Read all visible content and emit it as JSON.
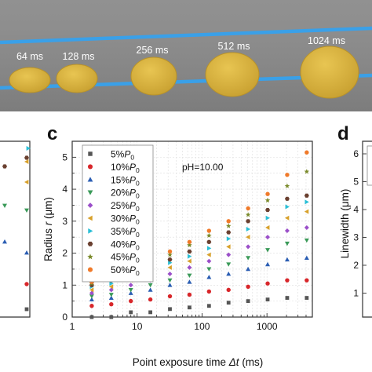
{
  "panel_labels": {
    "c": "c",
    "d": "d"
  },
  "micrograph": {
    "labels": [
      "64 ms",
      "128 ms",
      "256 ms",
      "512 ms",
      "1024 ms"
    ]
  },
  "colors": {
    "micrograph_bg": "#8a8a8a",
    "fiber_line": "#3aa0e8",
    "dot_fill": "#d9b43c",
    "dot_edge": "#b8922a"
  },
  "chart_data": [
    {
      "type": "scatter",
      "panel": "c",
      "xlabel_prefix": "Point exposure time ",
      "xlabel_var": "Δt",
      "xlabel_suffix": " (ms)",
      "ylabel_prefix": "Radius ",
      "ylabel_var": "r",
      "ylabel_suffix": " (μm)",
      "x_scale": "log",
      "xlim": [
        1,
        5000
      ],
      "ylim": [
        0,
        5.5
      ],
      "x_ticks": [
        1,
        10,
        100,
        1000
      ],
      "x_tick_labels": [
        "1",
        "10",
        "100",
        "1000"
      ],
      "y_ticks": [
        0,
        1,
        2,
        3,
        4,
        5
      ],
      "y_tick_labels": [
        "0",
        "1",
        "2",
        "3",
        "4",
        "5"
      ],
      "grid": true,
      "annotation": "pH=10.00",
      "legend_position": "top-left",
      "x": [
        2,
        4,
        8,
        16,
        32,
        64,
        128,
        256,
        512,
        1024,
        2048,
        4096
      ],
      "series": [
        {
          "name": "5%P0",
          "pct": "5%",
          "sym": "P",
          "sub": "0",
          "color": "#555555",
          "marker": "square",
          "values": [
            0.0,
            0.0,
            0.15,
            0.15,
            0.25,
            0.3,
            0.35,
            0.45,
            0.5,
            0.55,
            0.6,
            0.6
          ]
        },
        {
          "name": "10%P0",
          "pct": "10%",
          "sym": "P",
          "sub": "0",
          "color": "#d8262a",
          "marker": "circle",
          "values": [
            0.35,
            0.4,
            0.5,
            0.55,
            0.65,
            0.7,
            0.8,
            0.85,
            0.95,
            1.05,
            1.15,
            1.15
          ]
        },
        {
          "name": "15%P0",
          "pct": "15%",
          "sym": "P",
          "sub": "0",
          "color": "#2a5db3",
          "marker": "triangle-up",
          "values": [
            0.55,
            0.6,
            0.75,
            0.85,
            1.0,
            1.1,
            1.25,
            1.35,
            1.5,
            1.65,
            1.8,
            1.85
          ]
        },
        {
          "name": "20%P0",
          "pct": "20%",
          "sym": "P",
          "sub": "0",
          "color": "#3a9a58",
          "marker": "triangle-down",
          "values": [
            0.65,
            0.7,
            0.85,
            1.0,
            1.15,
            1.3,
            1.5,
            1.65,
            1.85,
            2.1,
            2.3,
            2.4
          ]
        },
        {
          "name": "25%P0",
          "pct": "25%",
          "sym": "P",
          "sub": "0",
          "color": "#9b4fc9",
          "marker": "diamond",
          "values": [
            0.75,
            0.85,
            1.0,
            1.15,
            1.35,
            1.55,
            1.75,
            1.95,
            2.2,
            2.5,
            2.7,
            2.8
          ]
        },
        {
          "name": "30%P0",
          "pct": "30%",
          "sym": "P",
          "sub": "0",
          "color": "#d8a12b",
          "marker": "triangle-left",
          "values": [
            0.85,
            0.95,
            1.15,
            1.3,
            1.55,
            1.75,
            1.95,
            2.2,
            2.5,
            2.8,
            3.1,
            3.3
          ]
        },
        {
          "name": "35%P0",
          "pct": "35%",
          "sym": "P",
          "sub": "0",
          "color": "#2bbfd6",
          "marker": "triangle-right",
          "values": [
            0.95,
            1.05,
            1.25,
            1.45,
            1.7,
            1.9,
            2.15,
            2.45,
            2.75,
            3.1,
            3.45,
            3.6
          ]
        },
        {
          "name": "40%P0",
          "pct": "40%",
          "sym": "P",
          "sub": "0",
          "color": "#6a4030",
          "marker": "hexagon",
          "values": [
            1.0,
            1.15,
            1.35,
            1.55,
            1.8,
            2.05,
            2.35,
            2.65,
            3.0,
            3.35,
            3.7,
            3.8
          ]
        },
        {
          "name": "45%P0",
          "pct": "45%",
          "sym": "P",
          "sub": "0",
          "color": "#7a8a2a",
          "marker": "star",
          "values": [
            1.05,
            1.2,
            1.45,
            1.65,
            1.95,
            2.25,
            2.55,
            2.85,
            3.2,
            3.65,
            4.1,
            4.55
          ]
        },
        {
          "name": "50%P0",
          "pct": "50%",
          "sym": "P",
          "sub": "0",
          "color": "#f07a2a",
          "marker": "circle",
          "values": [
            1.1,
            1.25,
            1.5,
            1.75,
            2.05,
            2.35,
            2.7,
            3.0,
            3.4,
            3.85,
            4.45,
            5.15
          ]
        }
      ]
    },
    {
      "type": "scatter",
      "panel": "b",
      "note": "partially visible panel at left edge (cropped)",
      "series_colors_visible": [
        "#2bbfd6",
        "#6a4030",
        "#d8a12b",
        "#3a9a58",
        "#2a5db3",
        "#d8262a",
        "#555555"
      ]
    },
    {
      "type": "scatter",
      "panel": "d",
      "ylabel": "Linewidth (μm)",
      "y_ticks": [
        1,
        2,
        3,
        4,
        5,
        6
      ],
      "y_tick_labels": [
        "1",
        "2",
        "3",
        "4",
        "5",
        "6"
      ]
    }
  ]
}
